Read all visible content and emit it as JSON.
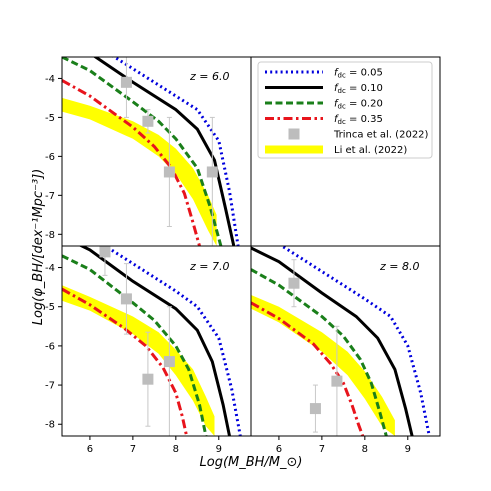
{
  "chart_data": {
    "type": "line",
    "xlabel": "Log(M_BH/M_⊙)",
    "ylabel": "Log(φ_BH/[dex⁻¹Mpc⁻³])",
    "xlim": [
      5.35,
      9.75
    ],
    "ylim": [
      -8.3,
      -3.45
    ],
    "xticks": [
      "6",
      "7",
      "8",
      "9"
    ],
    "yticks": [
      "-4",
      "-5",
      "-6",
      "-7",
      "-8"
    ],
    "legend": {
      "placement": "top-right panel",
      "entries": [
        {
          "label_main": "f",
          "label_sub": "dc",
          "label_rest": " = 0.05",
          "color": "#0000dd",
          "style": "dotted"
        },
        {
          "label_main": "f",
          "label_sub": "dc",
          "label_rest": " = 0.10",
          "color": "#000000",
          "style": "solid"
        },
        {
          "label_main": "f",
          "label_sub": "dc",
          "label_rest": " = 0.20",
          "color": "#1a7f1a",
          "style": "dashed"
        },
        {
          "label_main": "f",
          "label_sub": "dc",
          "label_rest": " = 0.35",
          "color": "#e8141c",
          "style": "dashdot"
        },
        {
          "label_main": "Trinca et al. (2022)",
          "label_sub": "",
          "label_rest": "",
          "color": "#bfbfbf",
          "style": "marker"
        },
        {
          "label_main": "Li et al. (2022)",
          "label_sub": "",
          "label_rest": "",
          "color": "#ffff00",
          "style": "band"
        }
      ]
    },
    "panels": [
      {
        "z_label": "z = 6.0",
        "series": [
          {
            "name": "f_dc = 0.05",
            "x": [
              5.35,
              6.0,
              7.0,
              8.0,
              8.5,
              9.0,
              9.25,
              9.45
            ],
            "y": [
              -2.7,
              -3.05,
              -3.75,
              -4.45,
              -4.8,
              -5.6,
              -6.9,
              -8.3
            ]
          },
          {
            "name": "f_dc = 0.10",
            "x": [
              5.35,
              6.0,
              7.0,
              8.0,
              8.5,
              8.9,
              9.15,
              9.35
            ],
            "y": [
              -3.0,
              -3.35,
              -4.1,
              -4.8,
              -5.3,
              -6.1,
              -7.3,
              -8.3
            ]
          },
          {
            "name": "f_dc = 0.20",
            "x": [
              5.35,
              6.0,
              7.0,
              7.6,
              8.0,
              8.5,
              8.8,
              9.05
            ],
            "y": [
              -3.45,
              -3.8,
              -4.6,
              -5.1,
              -5.55,
              -6.3,
              -7.3,
              -8.3
            ]
          },
          {
            "name": "f_dc = 0.35",
            "x": [
              5.35,
              6.0,
              7.0,
              7.5,
              7.9,
              8.2,
              8.4,
              8.55
            ],
            "y": [
              -4.05,
              -4.45,
              -5.25,
              -5.75,
              -6.3,
              -6.95,
              -7.7,
              -8.3
            ]
          }
        ],
        "band": {
          "x": [
            5.35,
            6.0,
            7.0,
            7.6,
            8.0,
            8.4,
            8.75,
            8.95
          ],
          "lower": [
            -4.85,
            -5.05,
            -5.55,
            -6.0,
            -6.45,
            -7.1,
            -7.9,
            -8.3
          ],
          "upper": [
            -4.5,
            -4.7,
            -5.1,
            -5.45,
            -5.8,
            -6.3,
            -7.0,
            -7.5
          ]
        },
        "points": [
          {
            "x": 6.85,
            "y": -4.1,
            "err_low": 0.9,
            "err_high": 0.9
          },
          {
            "x": 7.35,
            "y": -5.1,
            "err_low": 0.3,
            "err_high": 0.3
          },
          {
            "x": 7.85,
            "y": -6.4,
            "err_low": 1.4,
            "err_high": 1.4
          },
          {
            "x": 8.85,
            "y": -6.4,
            "err_low": 1.9,
            "err_high": 1.4
          }
        ]
      },
      {
        "z_label": "z = 7.0",
        "series": [
          {
            "name": "f_dc = 0.05",
            "x": [
              5.35,
              6.0,
              7.0,
              8.0,
              8.5,
              9.0,
              9.3,
              9.5
            ],
            "y": [
              -2.85,
              -3.2,
              -3.9,
              -4.6,
              -5.0,
              -5.8,
              -7.1,
              -8.3
            ]
          },
          {
            "name": "f_dc = 0.10",
            "x": [
              5.35,
              6.0,
              7.0,
              8.0,
              8.5,
              8.85,
              9.1,
              9.25
            ],
            "y": [
              -3.2,
              -3.55,
              -4.35,
              -5.05,
              -5.6,
              -6.4,
              -7.5,
              -8.3
            ]
          },
          {
            "name": "f_dc = 0.20",
            "x": [
              5.35,
              6.0,
              7.0,
              7.5,
              8.0,
              8.3,
              8.55,
              8.7
            ],
            "y": [
              -3.7,
              -4.05,
              -4.9,
              -5.35,
              -6.0,
              -6.6,
              -7.5,
              -8.3
            ]
          },
          {
            "name": "f_dc = 0.35",
            "x": [
              5.35,
              6.0,
              6.8,
              7.3,
              7.7,
              8.0,
              8.15,
              8.25
            ],
            "y": [
              -4.55,
              -4.95,
              -5.55,
              -6.0,
              -6.55,
              -7.2,
              -7.8,
              -8.3
            ]
          }
        ],
        "band": {
          "x": [
            5.35,
            6.0,
            7.0,
            7.6,
            8.0,
            8.4,
            8.7,
            8.9
          ],
          "lower": [
            -4.85,
            -5.1,
            -5.7,
            -6.2,
            -6.75,
            -7.4,
            -8.05,
            -8.3
          ],
          "upper": [
            -4.45,
            -4.75,
            -5.25,
            -5.65,
            -6.1,
            -6.6,
            -7.3,
            -7.8
          ]
        },
        "points": [
          {
            "x": 6.35,
            "y": -3.6,
            "err_low": 0.6,
            "err_high": 0.6
          },
          {
            "x": 6.85,
            "y": -4.8,
            "err_low": 0.9,
            "err_high": 0.9
          },
          {
            "x": 7.35,
            "y": -6.85,
            "err_low": 1.2,
            "err_high": 1.2
          },
          {
            "x": 7.85,
            "y": -6.4,
            "err_low": 1.9,
            "err_high": 1.4
          }
        ]
      },
      {
        "z_label": "z = 8.0",
        "series": [
          {
            "name": "f_dc = 0.05",
            "x": [
              5.35,
              6.0,
              7.0,
              8.0,
              8.6,
              9.0,
              9.3,
              9.5
            ],
            "y": [
              -3.05,
              -3.4,
              -4.1,
              -4.8,
              -5.25,
              -6.0,
              -7.2,
              -8.3
            ]
          },
          {
            "name": "f_dc = 0.10",
            "x": [
              5.35,
              6.0,
              7.0,
              7.8,
              8.3,
              8.7,
              8.95,
              9.1
            ],
            "y": [
              -3.5,
              -3.85,
              -4.65,
              -5.25,
              -5.8,
              -6.6,
              -7.6,
              -8.3
            ]
          },
          {
            "name": "f_dc = 0.20",
            "x": [
              5.35,
              6.0,
              7.0,
              7.5,
              7.9,
              8.15,
              8.35,
              8.5
            ],
            "y": [
              -4.05,
              -4.45,
              -5.25,
              -5.75,
              -6.35,
              -6.95,
              -7.7,
              -8.3
            ]
          },
          {
            "name": "f_dc = 0.35",
            "x": [
              5.35,
              6.0,
              6.8,
              7.2,
              7.5,
              7.7,
              7.85,
              7.95
            ],
            "y": [
              -4.9,
              -5.3,
              -5.95,
              -6.45,
              -6.95,
              -7.5,
              -8.0,
              -8.3
            ]
          }
        ],
        "band": {
          "x": [
            5.35,
            6.0,
            7.0,
            7.6,
            8.0,
            8.4,
            8.7
          ],
          "lower": [
            -5.05,
            -5.4,
            -6.15,
            -6.75,
            -7.35,
            -8.05,
            -8.3
          ],
          "upper": [
            -4.7,
            -5.0,
            -5.65,
            -6.15,
            -6.65,
            -7.3,
            -7.9
          ]
        },
        "points": [
          {
            "x": 6.35,
            "y": -4.4,
            "err_low": 0.6,
            "err_high": 0.6
          },
          {
            "x": 6.85,
            "y": -7.6,
            "err_low": 0.6,
            "err_high": 0.6
          },
          {
            "x": 7.35,
            "y": -6.9,
            "err_low": 1.4,
            "err_high": 1.4
          }
        ]
      }
    ]
  }
}
